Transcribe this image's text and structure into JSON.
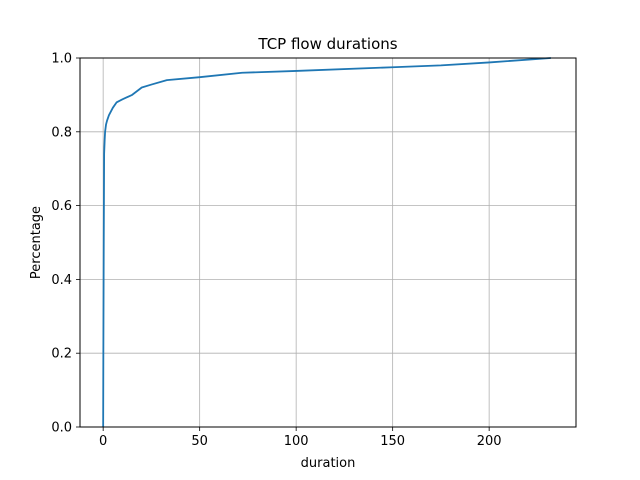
{
  "chart_data": {
    "type": "line",
    "title": "TCP flow durations",
    "xlabel": "duration",
    "ylabel": "Percentage",
    "xlim": [
      -12,
      245
    ],
    "ylim": [
      0,
      1.0
    ],
    "xticks": [
      0,
      50,
      100,
      150,
      200
    ],
    "yticks": [
      0.0,
      0.2,
      0.4,
      0.6,
      0.8,
      1.0
    ],
    "xtick_labels": [
      "0",
      "50",
      "100",
      "150",
      "200"
    ],
    "ytick_labels": [
      "0.0",
      "0.2",
      "0.4",
      "0.6",
      "0.8",
      "1.0"
    ],
    "grid": true,
    "line_color": "#1f77b4",
    "series": [
      {
        "x": [
          0,
          0.1,
          0.3,
          0.5,
          0.8,
          1.0,
          1.5,
          2,
          3,
          5,
          7,
          10,
          15,
          20,
          25,
          33,
          50,
          72,
          100,
          150,
          175,
          200,
          232
        ],
        "y": [
          0.0,
          0.2,
          0.5,
          0.74,
          0.78,
          0.8,
          0.82,
          0.83,
          0.845,
          0.865,
          0.88,
          0.888,
          0.9,
          0.92,
          0.928,
          0.94,
          0.948,
          0.96,
          0.965,
          0.975,
          0.98,
          0.988,
          1.0
        ]
      }
    ]
  }
}
